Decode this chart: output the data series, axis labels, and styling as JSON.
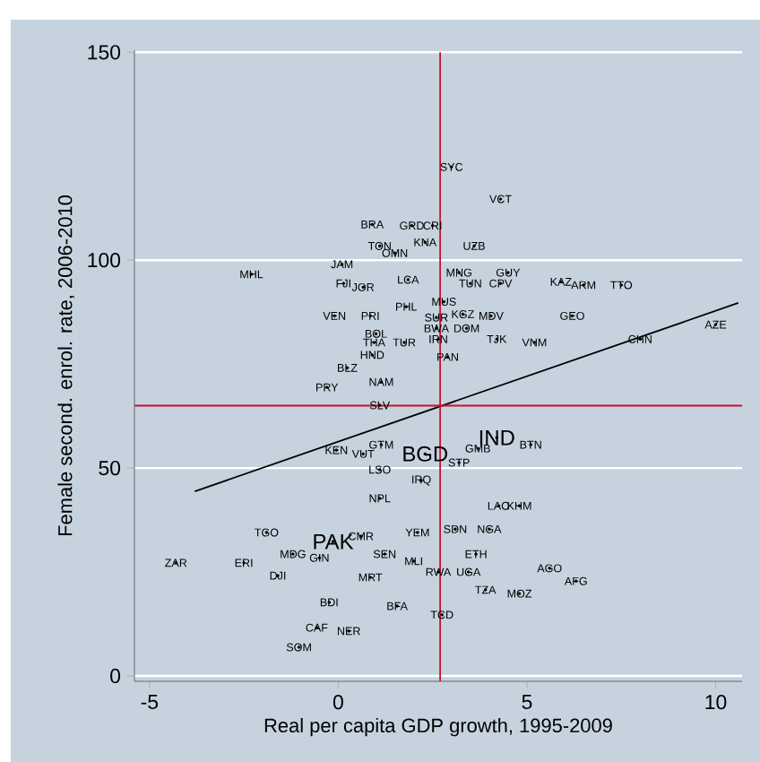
{
  "chart_data": {
    "type": "scatter",
    "xlabel": "Real per capita GDP growth, 1995-2009",
    "ylabel": "Female second. enrol. rate, 2006-2010",
    "xlim": [
      -5.4,
      10.7
    ],
    "ylim": [
      -1.3,
      150.5
    ],
    "xticks": [
      -5,
      0,
      5,
      10
    ],
    "yticks": [
      0,
      50,
      100,
      150
    ],
    "grid": "y",
    "ref_lines": [
      {
        "axis": "x",
        "value": 2.7,
        "color": "#c8102e"
      },
      {
        "axis": "y",
        "value": 65,
        "color": "#c8102e"
      }
    ],
    "series": [
      {
        "color": "#000000",
        "marker": "circle",
        "x": [
          3.0,
          4.3,
          3.6,
          3.2,
          4.5,
          3.5,
          4.3,
          5.9,
          6.5,
          7.5,
          3.3,
          4.05,
          6.2,
          10.0,
          3.4,
          4.2,
          5.2,
          8.0,
          2.9,
          2.6,
          2.6,
          2.65,
          2.8,
          0.9,
          1.95,
          2.5,
          2.3,
          1.1,
          1.5,
          0.1,
          -2.3,
          1.85,
          0.14,
          0.66,
          -0.1,
          0.85,
          1.8,
          1.0,
          0.95,
          1.75,
          0.9,
          0.24,
          1.14,
          -0.3,
          1.1,
          1.14,
          -0.05,
          0.66,
          1.1,
          2.2,
          3.2,
          1.1,
          -1.9,
          0.6,
          2.1,
          -1.2,
          -0.5,
          1.23,
          -4.3,
          -2.5,
          -1.6,
          2.0,
          0.85,
          -0.24,
          1.56,
          2.75,
          -0.57,
          0.28,
          -1.04,
          3.7,
          5.1,
          4.25,
          4.8,
          3.1,
          4.0,
          3.65,
          2.65,
          3.45,
          5.6,
          6.3,
          3.9,
          4.8
        ],
        "values": [
          122.4,
          114.7,
          103.4,
          97,
          97,
          94.4,
          94.4,
          94.8,
          94,
          94,
          87,
          86.6,
          86.6,
          84.5,
          83.6,
          81,
          80.2,
          81,
          76.7,
          86.2,
          83.6,
          81,
          90,
          108.6,
          108.3,
          108.3,
          104.3,
          103.4,
          101.7,
          99,
          96.6,
          95.3,
          94.4,
          93.5,
          86.6,
          86.6,
          88.8,
          82.3,
          80.2,
          80.2,
          77.2,
          74.1,
          70.7,
          69.4,
          65.1,
          55.6,
          54.3,
          53.4,
          49.6,
          47,
          51.3,
          42.7,
          34.5,
          33.6,
          34.5,
          29.3,
          28.4,
          29.3,
          27.2,
          27.2,
          24.1,
          27.6,
          23.7,
          17.7,
          16.8,
          14.7,
          11.6,
          10.8,
          6.9,
          54.7,
          55.6,
          40.9,
          40.9,
          35.3,
          35.3,
          29.3,
          25,
          25,
          25.9,
          22.8,
          20.7,
          19.8
        ],
        "value_labels": [
          "SYC",
          "VCT",
          "UZB",
          "MNG",
          "GUY",
          "TUN",
          "CPV",
          "KAZ",
          "ARM",
          "TTO",
          "KGZ",
          "MDV",
          "GEO",
          "AZE",
          "DOM",
          "TJK",
          "VNM",
          "CHN",
          "PAN",
          "SUR",
          "BWA",
          "IRN",
          "MUS",
          "BRA",
          "GRD",
          "CRI",
          "KNA",
          "TON",
          "OMN",
          "JAM",
          "MHL",
          "LCA",
          "FJI",
          "JOR",
          "VEN",
          "PRI",
          "PHL",
          "BOL",
          "THA",
          "TUR",
          "HND",
          "BLZ",
          "NAM",
          "PRY",
          "SLV",
          "GTM",
          "KEN",
          "VUT",
          "LSO",
          "IRQ",
          "STP",
          "NPL",
          "TGO",
          "CMR",
          "YEM",
          "MDG",
          "GIN",
          "SEN",
          "ZAR",
          "ERI",
          "DJI",
          "MLI",
          "MRT",
          "BDI",
          "BFA",
          "TCD",
          "CAF",
          "NER",
          "SOM",
          "GMB",
          "BTN",
          "LAO",
          "KHM",
          "SDN",
          "NGA",
          "ETH",
          "RWA",
          "UGA",
          "AGO",
          "AFG",
          "TZA",
          "MOZ"
        ]
      },
      {
        "color": "#000000",
        "marker": "circle",
        "x": [
          2.3,
          4.2,
          -0.14
        ],
        "values": [
          53.4,
          57.3,
          32.3
        ],
        "value_labels": [
          "BGD",
          "IND",
          "PAK"
        ]
      },
      {
        "type": "line",
        "color": "#000000",
        "x": [
          -3.8,
          10.6
        ],
        "values": [
          44.4,
          89.7
        ]
      }
    ]
  }
}
